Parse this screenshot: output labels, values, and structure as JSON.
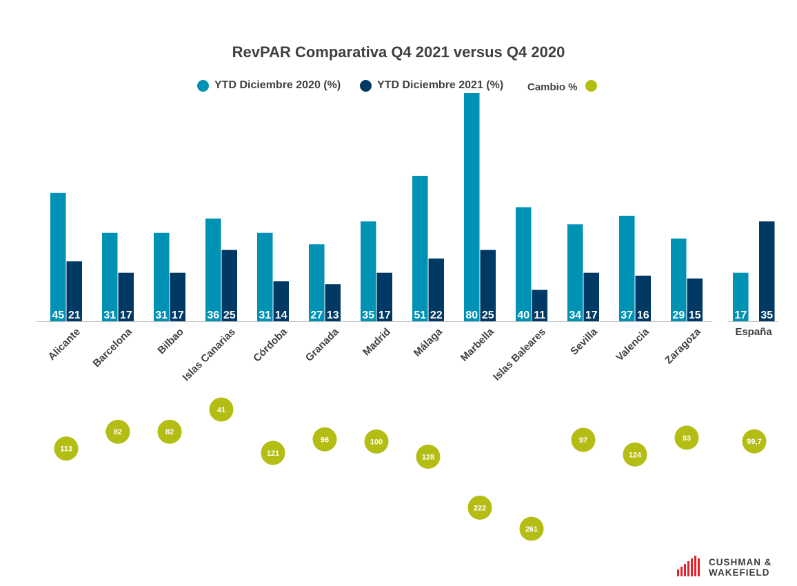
{
  "chart_data": {
    "type": "bar",
    "title": "RevPAR Comparativa Q4 2021 versus Q4 2020",
    "categories": [
      "Alicante",
      "Barcelona",
      "Bilbao",
      "Islas Canarias",
      "Córdoba",
      "Granada",
      "Madrid",
      "Málaga",
      "Marbella",
      "Islas Baleares",
      "Sevilla",
      "Valencia",
      "Zaragoza"
    ],
    "series": [
      {
        "name": "YTD Diciembre 2020 (%)",
        "values": [
          45,
          31,
          31,
          36,
          31,
          27,
          35,
          51,
          80,
          40,
          34,
          37,
          29
        ],
        "color": "#0092b4"
      },
      {
        "name": "YTD Diciembre 2021 (%)",
        "values": [
          21,
          17,
          17,
          25,
          14,
          13,
          17,
          22,
          25,
          11,
          17,
          16,
          15
        ],
        "color": "#003963"
      }
    ],
    "change_series": {
      "name": "Cambio %",
      "color": "#b3bd13",
      "labels": [
        "113",
        "82",
        "82",
        "41",
        "121",
        "96",
        "100",
        "128",
        "222",
        "261",
        "97",
        "124",
        "93"
      ],
      "values": [
        113,
        82,
        82,
        41,
        121,
        96,
        100,
        128,
        222,
        261,
        97,
        124,
        93
      ]
    },
    "national": {
      "category": "España",
      "values": [
        17,
        35
      ],
      "change_label": "99,7",
      "change_value": 99.7
    },
    "xlabel": "",
    "ylabel": "",
    "ylim": [
      0,
      80
    ],
    "legend": "top-center",
    "grid": false
  },
  "branding": {
    "logo_line1": "CUSHMAN &",
    "logo_line2": "WAKEFIELD",
    "logo_color": "#e4202a"
  }
}
